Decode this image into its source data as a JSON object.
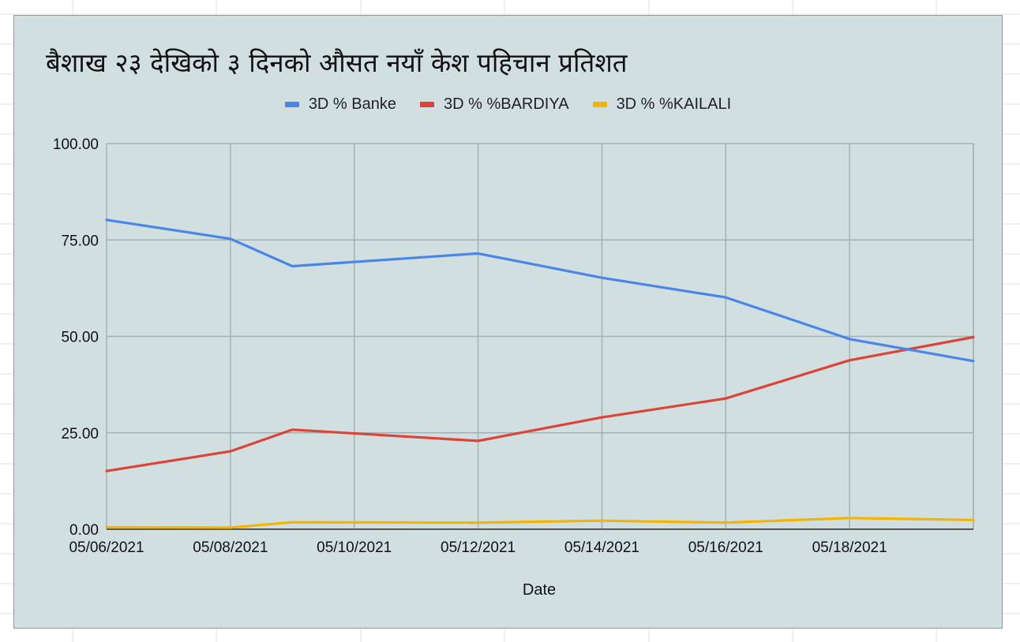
{
  "chart_data": {
    "type": "line",
    "title": "बैशाख २३ देखिको ३ दिनको औसत नयाँ केश पहिचान प्रतिशत",
    "xlabel": "Date",
    "ylabel": "",
    "x": [
      "05/06/2021",
      "05/07/2021",
      "05/08/2021",
      "05/09/2021",
      "05/10/2021",
      "05/11/2021",
      "05/12/2021",
      "05/13/2021",
      "05/14/2021",
      "05/15/2021",
      "05/16/2021",
      "05/17/2021",
      "05/18/2021",
      "05/19/2021",
      "05/20/2021"
    ],
    "x_tick_labels": [
      "05/06/2021",
      "05/08/2021",
      "05/10/2021",
      "05/12/2021",
      "05/14/2021",
      "05/16/2021",
      "05/18/2021"
    ],
    "y_tick_labels": [
      "0.00",
      "25.00",
      "50.00",
      "75.00",
      "100.00"
    ],
    "ylim": [
      0,
      100
    ],
    "grid": true,
    "legend_position": "top",
    "series": [
      {
        "name": "3D % Banke",
        "color": "#4a86e8",
        "points": [
          [
            "05/06/2021",
            80.2
          ],
          [
            "05/08/2021",
            75.3
          ],
          [
            "05/09/2021",
            68.2
          ],
          [
            "05/12/2021",
            71.5
          ],
          [
            "05/14/2021",
            65.2
          ],
          [
            "05/16/2021",
            60.1
          ],
          [
            "05/18/2021",
            49.3
          ],
          [
            "05/20/2021",
            43.6
          ]
        ]
      },
      {
        "name": "3D %  %BARDIYA",
        "color": "#db4437",
        "points": [
          [
            "05/06/2021",
            15.1
          ],
          [
            "05/08/2021",
            20.2
          ],
          [
            "05/09/2021",
            25.8
          ],
          [
            "05/12/2021",
            22.9
          ],
          [
            "05/14/2021",
            29.0
          ],
          [
            "05/16/2021",
            33.9
          ],
          [
            "05/18/2021",
            43.8
          ],
          [
            "05/20/2021",
            49.8
          ]
        ]
      },
      {
        "name": "3D %  %KAILALI",
        "color": "#f4b400",
        "points": [
          [
            "05/06/2021",
            0.5
          ],
          [
            "05/08/2021",
            0.4
          ],
          [
            "05/09/2021",
            1.8
          ],
          [
            "05/12/2021",
            1.7
          ],
          [
            "05/14/2021",
            2.2
          ],
          [
            "05/16/2021",
            1.7
          ],
          [
            "05/18/2021",
            2.9
          ],
          [
            "05/20/2021",
            2.4
          ]
        ]
      }
    ]
  }
}
